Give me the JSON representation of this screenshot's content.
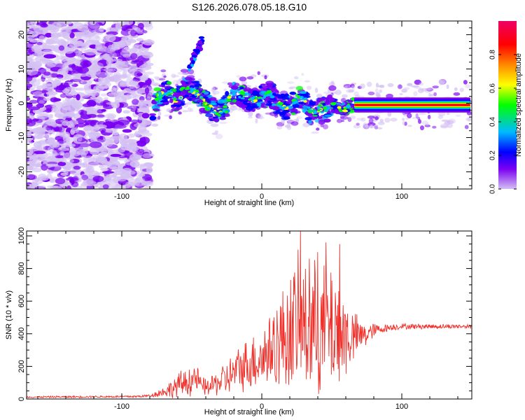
{
  "figure_title": "S126.2026.078.05.18.G10",
  "chart_data": [
    {
      "type": "heatmap",
      "title": "",
      "xlabel": "Height of straight line (km)",
      "ylabel": "Frequency (Hz)",
      "xlim": [
        -168,
        150
      ],
      "ylim": [
        -25,
        24
      ],
      "xticks": [
        -100,
        0,
        100
      ],
      "yticks": [
        -20,
        -10,
        0,
        10,
        20
      ],
      "noise_region_x": [
        -168,
        -80
      ],
      "ridge": {
        "x": [
          -78,
          -74,
          -70,
          -66,
          -62,
          -58,
          -54,
          -50,
          -46,
          -42,
          -38,
          -34,
          -30,
          -26,
          -22,
          -18,
          -14,
          -10,
          -6,
          -2,
          2,
          6,
          10,
          14,
          18,
          22,
          26,
          30,
          34,
          38,
          42,
          46,
          50,
          54,
          58,
          62,
          66,
          80,
          100,
          120,
          148
        ],
        "freq": [
          -2,
          2,
          3,
          3,
          1,
          2,
          4,
          4,
          3,
          1,
          -1,
          -2,
          -3,
          -1,
          3,
          3,
          2,
          1,
          1,
          2,
          2,
          3,
          1,
          -1,
          -1,
          0,
          1,
          2,
          -2,
          -3,
          -2,
          -2,
          0,
          -1,
          -2,
          -1,
          -0.5,
          -0.5,
          -0.5,
          -0.5,
          -0.5
        ]
      },
      "branch": {
        "x": [
          -52,
          -50,
          -48,
          -46,
          -44,
          -42
        ],
        "freq": [
          10,
          12,
          14,
          16,
          17,
          19
        ]
      },
      "colorbar": {
        "label": "Normalized spectral amplitude",
        "ticks": [
          0.0,
          0.2,
          0.4,
          0.6,
          0.8
        ],
        "tick_labels": [
          "0.0",
          "0.2",
          "0.4",
          "0.6",
          "0.8"
        ],
        "range": [
          0,
          1
        ],
        "colors": [
          "#d4c0f3",
          "#7a00f2",
          "#0000ff",
          "#00bbff",
          "#00ff00",
          "#ffff00",
          "#ff8800",
          "#ff0000",
          "#ee0066"
        ]
      }
    },
    {
      "type": "line",
      "title": "",
      "xlabel": "Height of straight line (km)",
      "ylabel": "SNR (10 * v/v)",
      "xlim": [
        -168,
        150
      ],
      "ylim": [
        0,
        1030
      ],
      "xticks": [
        -100,
        0,
        100
      ],
      "yticks": [
        0,
        200,
        400,
        600,
        800,
        1000
      ],
      "color": "#f0302a",
      "envelope": {
        "x": [
          -168,
          -90,
          -80,
          -72,
          -65,
          -58,
          -52,
          -47,
          -43,
          -38,
          -32,
          -26,
          -20,
          -14,
          -8,
          -2,
          4,
          8,
          12,
          16,
          20,
          24,
          28,
          32,
          36,
          40,
          44,
          48,
          52,
          56,
          60,
          64,
          68,
          72,
          76,
          80,
          86,
          92,
          100,
          120,
          150
        ],
        "mean": [
          12,
          15,
          20,
          40,
          60,
          90,
          110,
          130,
          80,
          70,
          100,
          120,
          160,
          200,
          220,
          250,
          280,
          320,
          350,
          380,
          420,
          450,
          470,
          450,
          440,
          430,
          420,
          440,
          430,
          400,
          390,
          380,
          380,
          390,
          400,
          420,
          430,
          440,
          445,
          445,
          445
        ],
        "amp": [
          6,
          8,
          10,
          30,
          60,
          90,
          110,
          100,
          60,
          60,
          90,
          120,
          140,
          170,
          190,
          210,
          250,
          300,
          330,
          360,
          420,
          450,
          470,
          470,
          460,
          450,
          440,
          450,
          440,
          380,
          300,
          200,
          150,
          100,
          80,
          50,
          30,
          25,
          20,
          18,
          15
        ]
      },
      "peaks": [
        {
          "x": 28,
          "y": 1030
        },
        {
          "x": 46,
          "y": 960
        },
        {
          "x": 56,
          "y": 950
        },
        {
          "x": 40,
          "y": 900
        },
        {
          "x": 34,
          "y": 860
        }
      ]
    }
  ]
}
